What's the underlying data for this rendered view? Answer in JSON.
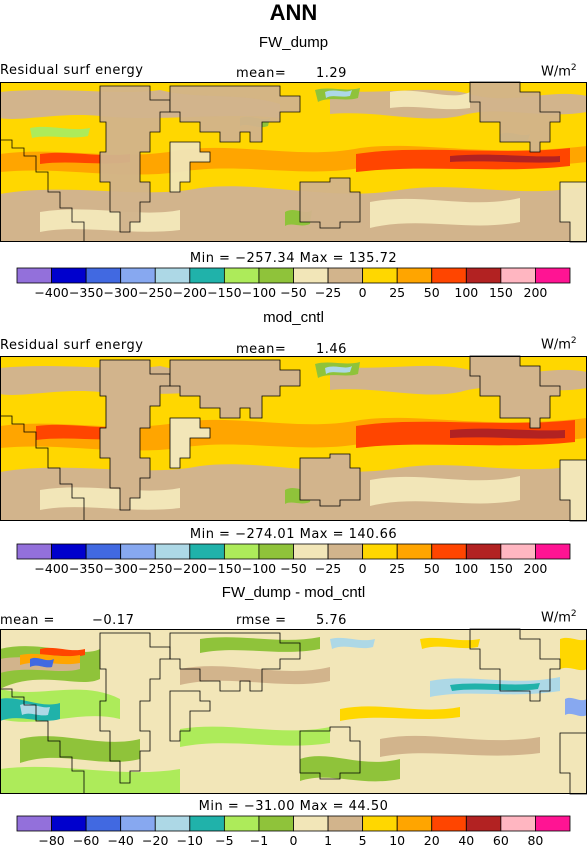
{
  "page_title": "ANN",
  "panels": [
    {
      "title": "FW_dump",
      "left_label": "Residual surf energy",
      "stat_label": "mean=",
      "stat_value": "1.29",
      "units": "W/m",
      "units_sup": "2",
      "minmax": "Min = −257.34  Max = 135.72"
    },
    {
      "title": "mod_cntl",
      "left_label": "Residual surf energy",
      "stat_label": "mean=",
      "stat_value": "1.46",
      "units": "W/m",
      "units_sup": "2",
      "minmax": "Min = −274.01  Max = 140.66"
    },
    {
      "title": "FW_dump - mod_cntl",
      "left_label": "mean =",
      "left_value": "−0.17",
      "stat_label": "rmse =",
      "stat_value": "5.76",
      "units": "W/m",
      "units_sup": "2",
      "minmax": "Min = −31.00  Max =  44.50"
    }
  ],
  "colorbar_colors": [
    "#9370DB",
    "#0000CD",
    "#4169E1",
    "#87A8F0",
    "#ADD8E6",
    "#20B2AA",
    "#ADEB5A",
    "#8FC33A",
    "#F2E6B8",
    "#D2B48C",
    "#FFD700",
    "#FFA500",
    "#FF4500",
    "#B22222",
    "#FFB6C1",
    "#FF1493"
  ],
  "colorbar_ticks_main": [
    "−400",
    "−350",
    "−300",
    "−250",
    "−200",
    "−150",
    "−100",
    "−50",
    "−25",
    "0",
    "25",
    "50",
    "100",
    "150",
    "200"
  ],
  "colorbar_ticks_diff": [
    "−80",
    "−60",
    "−40",
    "−20",
    "−10",
    "−5",
    "−1",
    "0",
    "1",
    "5",
    "10",
    "20",
    "40",
    "60",
    "80"
  ],
  "chart_data": [
    {
      "type": "heatmap",
      "title": "FW_dump",
      "variable": "Residual surf energy",
      "units": "W/m2",
      "mean": 1.29,
      "min": -257.34,
      "max": 135.72,
      "contour_levels": [
        -400,
        -350,
        -300,
        -250,
        -200,
        -150,
        -100,
        -50,
        -25,
        0,
        25,
        50,
        100,
        150,
        200
      ]
    },
    {
      "type": "heatmap",
      "title": "mod_cntl",
      "variable": "Residual surf energy",
      "units": "W/m2",
      "mean": 1.46,
      "min": -274.01,
      "max": 140.66,
      "contour_levels": [
        -400,
        -350,
        -300,
        -250,
        -200,
        -150,
        -100,
        -50,
        -25,
        0,
        25,
        50,
        100,
        150,
        200
      ]
    },
    {
      "type": "heatmap",
      "title": "FW_dump - mod_cntl",
      "units": "W/m2",
      "mean": -0.17,
      "rmse": 5.76,
      "min": -31.0,
      "max": 44.5,
      "contour_levels": [
        -80,
        -60,
        -40,
        -20,
        -10,
        -5,
        -1,
        0,
        1,
        5,
        10,
        20,
        40,
        60,
        80
      ]
    }
  ]
}
